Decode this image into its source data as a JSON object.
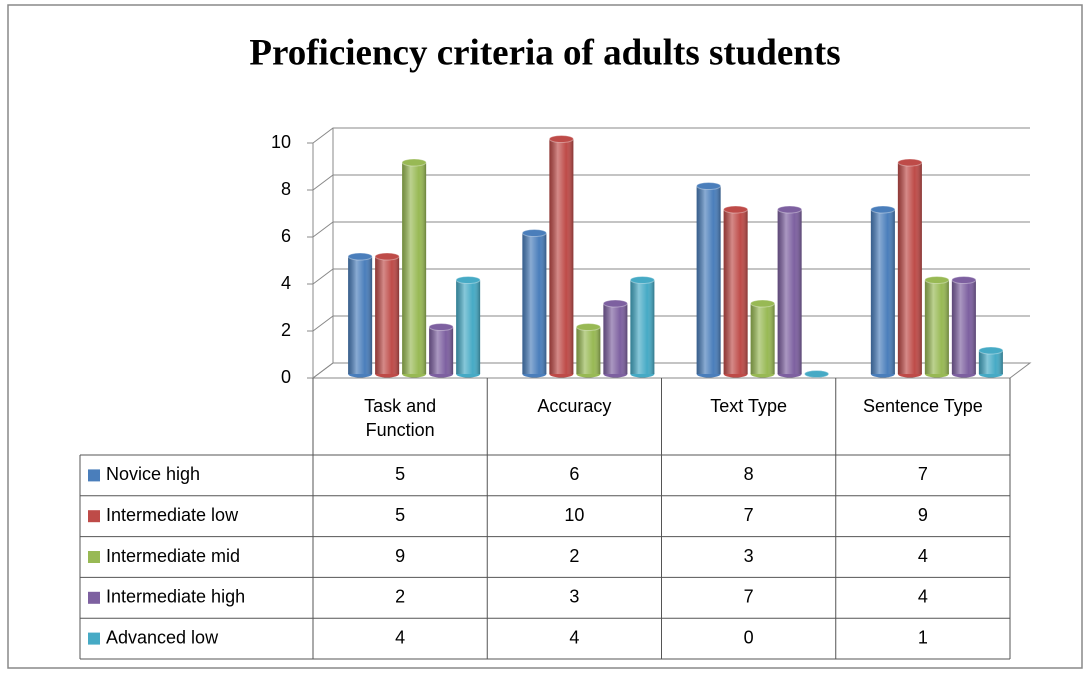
{
  "chart_data": {
    "type": "bar3d",
    "title": "Proficiency criteria of adults students",
    "categories": [
      "Task and Function",
      "Accuracy",
      "Text Type",
      "Sentence Type"
    ],
    "series": [
      {
        "name": "Novice high",
        "color": "#4a7ebb",
        "values": [
          5,
          6,
          8,
          7
        ]
      },
      {
        "name": "Intermediate low",
        "color": "#be4b48",
        "values": [
          5,
          10,
          7,
          9
        ]
      },
      {
        "name": "Intermediate mid",
        "color": "#98b954",
        "values": [
          9,
          2,
          3,
          4
        ]
      },
      {
        "name": "Intermediate high",
        "color": "#7d60a0",
        "values": [
          2,
          3,
          7,
          4
        ]
      },
      {
        "name": "Advanced low",
        "color": "#46aac5",
        "values": [
          4,
          4,
          0,
          1
        ]
      }
    ],
    "ylim": [
      0,
      10
    ],
    "yticks": [
      0,
      2,
      4,
      6,
      8,
      10
    ],
    "grid": true,
    "data_table": true
  }
}
